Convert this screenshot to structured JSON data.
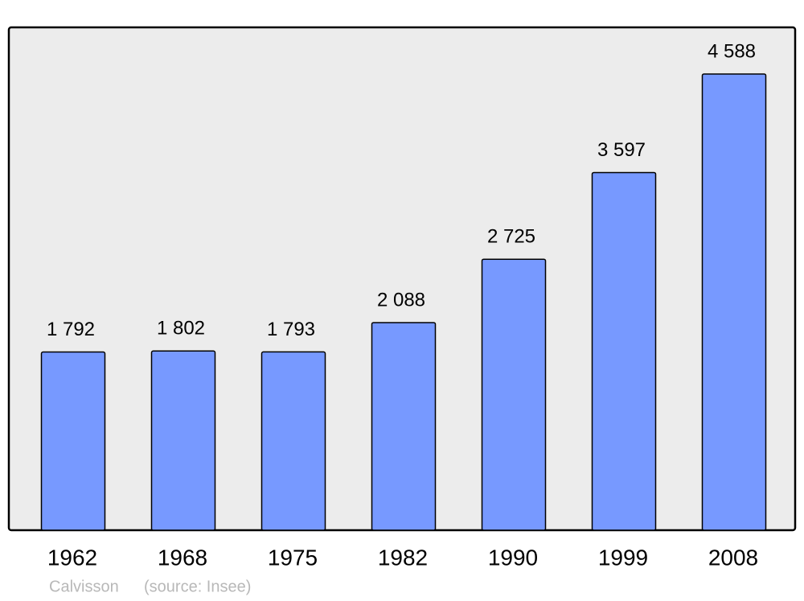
{
  "chart_data": {
    "type": "bar",
    "categories": [
      "1962",
      "1968",
      "1975",
      "1982",
      "1990",
      "1999",
      "2008"
    ],
    "values": [
      1792,
      1802,
      1793,
      2088,
      2725,
      3597,
      4588
    ],
    "value_labels": [
      "1 792",
      "1 802",
      "1 793",
      "2 088",
      "2 725",
      "3 597",
      "4 588"
    ],
    "color": "#7799ff",
    "caption": "Calvisson",
    "source": "(source: Insee)"
  }
}
